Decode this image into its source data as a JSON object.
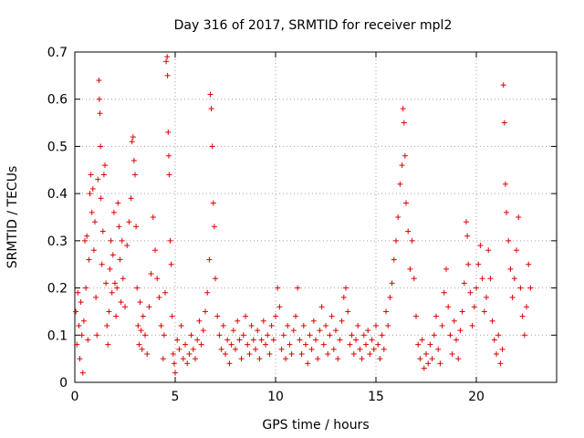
{
  "chart_data": {
    "type": "scatter",
    "title": "Day 316 of 2017, SRMTID for receiver mpl2",
    "xlabel": "GPS time / hours",
    "ylabel": "SRMTID / TECUs",
    "xlim": [
      0,
      24
    ],
    "ylim": [
      0,
      0.7
    ],
    "xticks": [
      0,
      5,
      10,
      15,
      20
    ],
    "xtick_labels": [
      "0",
      "5",
      "10",
      "15",
      "20"
    ],
    "yticks": [
      0,
      0.1,
      0.2,
      0.3,
      0.4,
      0.5,
      0.6,
      0.7
    ],
    "ytick_labels": [
      "0",
      "0.1",
      "0.2",
      "0.3",
      "0.4",
      "0.5",
      "0.6",
      "0.7"
    ],
    "grid": true,
    "marker": "plus",
    "color": "#e00000",
    "series": [
      {
        "points": [
          [
            0.05,
            0.15
          ],
          [
            0.1,
            0.08
          ],
          [
            0.15,
            0.19
          ],
          [
            0.2,
            0.12
          ],
          [
            0.25,
            0.05
          ],
          [
            0.3,
            0.17
          ],
          [
            0.35,
            0.1
          ],
          [
            0.4,
            0.02
          ],
          [
            0.45,
            0.13
          ],
          [
            0.5,
            0.3
          ],
          [
            0.55,
            0.2
          ],
          [
            0.6,
            0.31
          ],
          [
            0.65,
            0.09
          ],
          [
            0.7,
            0.26
          ],
          [
            0.75,
            0.4
          ],
          [
            0.8,
            0.44
          ],
          [
            0.85,
            0.36
          ],
          [
            0.9,
            0.41
          ],
          [
            0.95,
            0.28
          ],
          [
            1.0,
            0.34
          ],
          [
            1.05,
            0.18
          ],
          [
            1.1,
            0.1
          ],
          [
            1.15,
            0.43
          ],
          [
            1.2,
            0.64
          ],
          [
            1.22,
            0.6
          ],
          [
            1.25,
            0.57
          ],
          [
            1.28,
            0.5
          ],
          [
            1.3,
            0.39
          ],
          [
            1.35,
            0.25
          ],
          [
            1.4,
            0.32
          ],
          [
            1.45,
            0.44
          ],
          [
            1.5,
            0.46
          ],
          [
            1.55,
            0.21
          ],
          [
            1.6,
            0.12
          ],
          [
            1.65,
            0.08
          ],
          [
            1.7,
            0.15
          ],
          [
            1.75,
            0.24
          ],
          [
            1.8,
            0.3
          ],
          [
            1.85,
            0.19
          ],
          [
            1.9,
            0.27
          ],
          [
            1.95,
            0.36
          ],
          [
            2.0,
            0.21
          ],
          [
            2.05,
            0.14
          ],
          [
            2.1,
            0.2
          ],
          [
            2.15,
            0.38
          ],
          [
            2.2,
            0.33
          ],
          [
            2.25,
            0.26
          ],
          [
            2.3,
            0.17
          ],
          [
            2.35,
            0.3
          ],
          [
            2.4,
            0.22
          ],
          [
            2.5,
            0.16
          ],
          [
            2.6,
            0.29
          ],
          [
            2.7,
            0.34
          ],
          [
            2.8,
            0.39
          ],
          [
            2.85,
            0.51
          ],
          [
            2.9,
            0.52
          ],
          [
            2.95,
            0.47
          ],
          [
            3.0,
            0.44
          ],
          [
            3.05,
            0.33
          ],
          [
            3.1,
            0.2
          ],
          [
            3.15,
            0.12
          ],
          [
            3.2,
            0.08
          ],
          [
            3.25,
            0.17
          ],
          [
            3.3,
            0.11
          ],
          [
            3.35,
            0.07
          ],
          [
            3.4,
            0.14
          ],
          [
            3.5,
            0.1
          ],
          [
            3.6,
            0.06
          ],
          [
            3.7,
            0.16
          ],
          [
            3.8,
            0.23
          ],
          [
            3.9,
            0.35
          ],
          [
            4.0,
            0.28
          ],
          [
            4.1,
            0.22
          ],
          [
            4.2,
            0.18
          ],
          [
            4.3,
            0.12
          ],
          [
            4.4,
            0.05
          ],
          [
            4.45,
            0.1
          ],
          [
            4.5,
            0.19
          ],
          [
            4.55,
            0.68
          ],
          [
            4.6,
            0.69
          ],
          [
            4.62,
            0.65
          ],
          [
            4.65,
            0.53
          ],
          [
            4.68,
            0.48
          ],
          [
            4.7,
            0.44
          ],
          [
            4.75,
            0.3
          ],
          [
            4.8,
            0.25
          ],
          [
            4.85,
            0.14
          ],
          [
            4.9,
            0.06
          ],
          [
            4.95,
            0.04
          ],
          [
            5.0,
            0.02
          ],
          [
            5.1,
            0.09
          ],
          [
            5.2,
            0.07
          ],
          [
            5.3,
            0.12
          ],
          [
            5.4,
            0.05
          ],
          [
            5.5,
            0.08
          ],
          [
            5.6,
            0.04
          ],
          [
            5.7,
            0.06
          ],
          [
            5.8,
            0.1
          ],
          [
            5.9,
            0.07
          ],
          [
            6.0,
            0.05
          ],
          [
            6.1,
            0.09
          ],
          [
            6.2,
            0.13
          ],
          [
            6.3,
            0.08
          ],
          [
            6.4,
            0.11
          ],
          [
            6.5,
            0.15
          ],
          [
            6.6,
            0.19
          ],
          [
            6.7,
            0.26
          ],
          [
            6.75,
            0.61
          ],
          [
            6.8,
            0.58
          ],
          [
            6.85,
            0.5
          ],
          [
            6.9,
            0.38
          ],
          [
            6.95,
            0.33
          ],
          [
            7.0,
            0.22
          ],
          [
            7.1,
            0.14
          ],
          [
            7.2,
            0.1
          ],
          [
            7.3,
            0.07
          ],
          [
            7.4,
            0.12
          ],
          [
            7.5,
            0.06
          ],
          [
            7.6,
            0.09
          ],
          [
            7.7,
            0.04
          ],
          [
            7.8,
            0.08
          ],
          [
            7.9,
            0.11
          ],
          [
            8.0,
            0.07
          ],
          [
            8.1,
            0.13
          ],
          [
            8.2,
            0.09
          ],
          [
            8.3,
            0.05
          ],
          [
            8.4,
            0.1
          ],
          [
            8.5,
            0.14
          ],
          [
            8.6,
            0.08
          ],
          [
            8.7,
            0.06
          ],
          [
            8.8,
            0.12
          ],
          [
            8.9,
            0.09
          ],
          [
            9.0,
            0.07
          ],
          [
            9.1,
            0.11
          ],
          [
            9.2,
            0.05
          ],
          [
            9.3,
            0.09
          ],
          [
            9.4,
            0.13
          ],
          [
            9.5,
            0.08
          ],
          [
            9.6,
            0.1
          ],
          [
            9.7,
            0.06
          ],
          [
            9.8,
            0.12
          ],
          [
            9.9,
            0.09
          ],
          [
            10.0,
            0.14
          ],
          [
            10.1,
            0.2
          ],
          [
            10.2,
            0.16
          ],
          [
            10.3,
            0.07
          ],
          [
            10.4,
            0.1
          ],
          [
            10.5,
            0.05
          ],
          [
            10.6,
            0.12
          ],
          [
            10.7,
            0.08
          ],
          [
            10.8,
            0.06
          ],
          [
            10.9,
            0.11
          ],
          [
            11.0,
            0.14
          ],
          [
            11.1,
            0.2
          ],
          [
            11.2,
            0.09
          ],
          [
            11.3,
            0.06
          ],
          [
            11.4,
            0.12
          ],
          [
            11.5,
            0.08
          ],
          [
            11.6,
            0.04
          ],
          [
            11.7,
            0.1
          ],
          [
            11.8,
            0.07
          ],
          [
            11.9,
            0.13
          ],
          [
            12.0,
            0.09
          ],
          [
            12.1,
            0.05
          ],
          [
            12.2,
            0.11
          ],
          [
            12.3,
            0.16
          ],
          [
            12.4,
            0.08
          ],
          [
            12.5,
            0.12
          ],
          [
            12.6,
            0.06
          ],
          [
            12.7,
            0.1
          ],
          [
            12.8,
            0.14
          ],
          [
            12.9,
            0.07
          ],
          [
            13.0,
            0.11
          ],
          [
            13.1,
            0.05
          ],
          [
            13.2,
            0.09
          ],
          [
            13.3,
            0.13
          ],
          [
            13.4,
            0.18
          ],
          [
            13.5,
            0.2
          ],
          [
            13.6,
            0.15
          ],
          [
            13.7,
            0.08
          ],
          [
            13.8,
            0.1
          ],
          [
            13.9,
            0.06
          ],
          [
            14.0,
            0.09
          ],
          [
            14.1,
            0.12
          ],
          [
            14.2,
            0.07
          ],
          [
            14.3,
            0.05
          ],
          [
            14.4,
            0.1
          ],
          [
            14.5,
            0.08
          ],
          [
            14.6,
            0.11
          ],
          [
            14.7,
            0.06
          ],
          [
            14.8,
            0.09
          ],
          [
            14.9,
            0.07
          ],
          [
            15.0,
            0.12
          ],
          [
            15.1,
            0.08
          ],
          [
            15.2,
            0.05
          ],
          [
            15.3,
            0.1
          ],
          [
            15.4,
            0.07
          ],
          [
            15.5,
            0.15
          ],
          [
            15.6,
            0.12
          ],
          [
            15.7,
            0.18
          ],
          [
            15.8,
            0.21
          ],
          [
            15.9,
            0.26
          ],
          [
            16.0,
            0.3
          ],
          [
            16.1,
            0.35
          ],
          [
            16.2,
            0.42
          ],
          [
            16.3,
            0.46
          ],
          [
            16.35,
            0.58
          ],
          [
            16.4,
            0.55
          ],
          [
            16.45,
            0.48
          ],
          [
            16.5,
            0.38
          ],
          [
            16.6,
            0.32
          ],
          [
            16.7,
            0.24
          ],
          [
            16.8,
            0.3
          ],
          [
            16.9,
            0.22
          ],
          [
            17.0,
            0.14
          ],
          [
            17.1,
            0.08
          ],
          [
            17.2,
            0.05
          ],
          [
            17.3,
            0.09
          ],
          [
            17.4,
            0.03
          ],
          [
            17.5,
            0.06
          ],
          [
            17.6,
            0.04
          ],
          [
            17.7,
            0.08
          ],
          [
            17.8,
            0.05
          ],
          [
            17.9,
            0.1
          ],
          [
            18.0,
            0.14
          ],
          [
            18.1,
            0.07
          ],
          [
            18.2,
            0.04
          ],
          [
            18.3,
            0.12
          ],
          [
            18.4,
            0.19
          ],
          [
            18.5,
            0.24
          ],
          [
            18.6,
            0.16
          ],
          [
            18.7,
            0.1
          ],
          [
            18.8,
            0.06
          ],
          [
            18.9,
            0.13
          ],
          [
            19.0,
            0.09
          ],
          [
            19.1,
            0.05
          ],
          [
            19.2,
            0.11
          ],
          [
            19.3,
            0.15
          ],
          [
            19.4,
            0.21
          ],
          [
            19.5,
            0.34
          ],
          [
            19.55,
            0.31
          ],
          [
            19.6,
            0.25
          ],
          [
            19.7,
            0.19
          ],
          [
            19.8,
            0.12
          ],
          [
            19.9,
            0.16
          ],
          [
            20.0,
            0.2
          ],
          [
            20.1,
            0.25
          ],
          [
            20.2,
            0.29
          ],
          [
            20.3,
            0.22
          ],
          [
            20.4,
            0.15
          ],
          [
            20.5,
            0.18
          ],
          [
            20.6,
            0.28
          ],
          [
            20.7,
            0.22
          ],
          [
            20.8,
            0.13
          ],
          [
            20.9,
            0.09
          ],
          [
            21.0,
            0.06
          ],
          [
            21.1,
            0.1
          ],
          [
            21.2,
            0.04
          ],
          [
            21.3,
            0.07
          ],
          [
            21.35,
            0.63
          ],
          [
            21.4,
            0.55
          ],
          [
            21.45,
            0.42
          ],
          [
            21.5,
            0.36
          ],
          [
            21.6,
            0.3
          ],
          [
            21.7,
            0.24
          ],
          [
            21.8,
            0.18
          ],
          [
            21.9,
            0.22
          ],
          [
            22.0,
            0.28
          ],
          [
            22.1,
            0.35
          ],
          [
            22.2,
            0.2
          ],
          [
            22.3,
            0.14
          ],
          [
            22.4,
            0.1
          ],
          [
            22.5,
            0.16
          ],
          [
            22.6,
            0.25
          ],
          [
            22.7,
            0.2
          ]
        ]
      }
    ]
  }
}
